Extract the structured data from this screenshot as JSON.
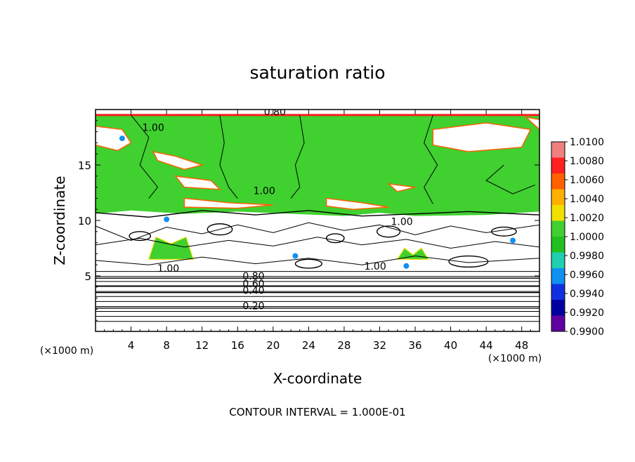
{
  "chart_data": {
    "type": "heatmap",
    "title": "saturation ratio",
    "xlabel": "X-coordinate",
    "ylabel": "Z-coordinate",
    "x_unit": "(×1000 m)",
    "y_unit": "(×1000 m)",
    "xlim": [
      0,
      50
    ],
    "ylim": [
      0,
      20
    ],
    "x_ticks": [
      4,
      8,
      12,
      16,
      20,
      24,
      28,
      32,
      36,
      40,
      44,
      48
    ],
    "y_ticks": [
      5,
      10,
      15
    ],
    "footer": "CONTOUR INTERVAL = 1.000E-01",
    "colorbar": {
      "ticks": [
        "1.0100",
        "1.0080",
        "1.0060",
        "1.0040",
        "1.0020",
        "1.0000",
        "0.9980",
        "0.9960",
        "0.9940",
        "0.9920",
        "0.9900"
      ],
      "colors": [
        "#f08080",
        "#ff2020",
        "#ff6000",
        "#ffb000",
        "#f0e000",
        "#40d030",
        "#20c020",
        "#20d0b0",
        "#1090f0",
        "#1030e0",
        "#0000a0",
        "#6000a0"
      ]
    },
    "contour_labels": [
      {
        "text": "0.20",
        "x": 17.8,
        "z": 2.3
      },
      {
        "text": "0.40",
        "x": 17.8,
        "z": 3.7
      },
      {
        "text": "0.60",
        "x": 17.8,
        "z": 4.3
      },
      {
        "text": "0.80",
        "x": 17.8,
        "z": 5.0
      },
      {
        "text": "1.00",
        "x": 8.2,
        "z": 5.7
      },
      {
        "text": "1.00",
        "x": 31.5,
        "z": 5.9
      },
      {
        "text": "1.00",
        "x": 34.5,
        "z": 9.9
      },
      {
        "text": "1.00",
        "x": 19.0,
        "z": 12.7
      },
      {
        "text": "1.00",
        "x": 6.5,
        "z": 18.4
      },
      {
        "text": "0.80",
        "x": 20.2,
        "z": 19.8
      }
    ],
    "layers": [
      {
        "level": "0.20",
        "z": 2.1
      },
      {
        "level": "0.40",
        "z": 3.5
      },
      {
        "level": "0.60",
        "z": 4.1
      },
      {
        "level": "0.80",
        "z": 4.8
      }
    ],
    "regions": {
      "moist_layer": {
        "z_from": 10.5,
        "z_to": 19.5,
        "value": "1.0000"
      },
      "low_cloud_patches": [
        {
          "x": [
            6,
            11
          ],
          "z": [
            6.5,
            8.5
          ]
        },
        {
          "x": [
            34,
            37.5
          ],
          "z": [
            6.5,
            7.5
          ]
        }
      ]
    }
  }
}
